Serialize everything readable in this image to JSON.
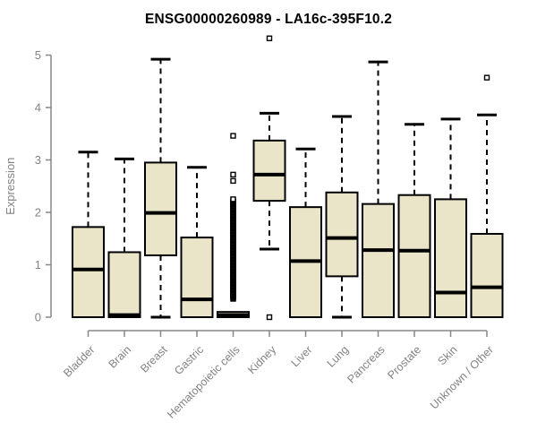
{
  "chart_data": {
    "type": "box",
    "title": "ENSG00000260989 - LA16c-395F10.2",
    "ylabel": "Expression",
    "xlabel": "",
    "ylim": [
      0,
      5
    ],
    "yticks": [
      0,
      1,
      2,
      3,
      4,
      5
    ],
    "grid": false,
    "legend": "none",
    "categories": [
      "Bladder",
      "Brain",
      "Breast",
      "Gastric",
      "Hematopoietic cells",
      "Kidney",
      "Liver",
      "Lung",
      "Pancreas",
      "Prostate",
      "Skin",
      "Unknown / Other"
    ],
    "series": [
      {
        "category": "Bladder",
        "whisker_low": 0,
        "q1": 0,
        "median": 0.91,
        "q3": 1.72,
        "whisker_high": 3.15,
        "outliers": []
      },
      {
        "category": "Brain",
        "whisker_low": 0,
        "q1": 0,
        "median": 0.04,
        "q3": 1.24,
        "whisker_high": 3.02,
        "outliers": []
      },
      {
        "category": "Breast",
        "whisker_low": 0,
        "q1": 1.18,
        "median": 1.99,
        "q3": 2.95,
        "whisker_high": 4.92,
        "outliers": []
      },
      {
        "category": "Gastric",
        "whisker_low": 0,
        "q1": 0,
        "median": 0.34,
        "q3": 1.52,
        "whisker_high": 2.86,
        "outliers": []
      },
      {
        "category": "Hematopoietic cells",
        "whisker_low": 0,
        "q1": 0,
        "median": 0.04,
        "q3": 0.1,
        "whisker_high": 0.1,
        "outliers": [
          2.6,
          2.72,
          3.46
        ],
        "outlier_band": [
          0.35,
          2.26
        ]
      },
      {
        "category": "Kidney",
        "whisker_low": 1.3,
        "q1": 2.22,
        "median": 2.72,
        "q3": 3.37,
        "whisker_high": 3.89,
        "outliers": [
          0,
          5.32
        ]
      },
      {
        "category": "Liver",
        "whisker_low": 0,
        "q1": 0,
        "median": 1.07,
        "q3": 2.1,
        "whisker_high": 3.21,
        "outliers": []
      },
      {
        "category": "Lung",
        "whisker_low": 0,
        "q1": 0.78,
        "median": 1.51,
        "q3": 2.38,
        "whisker_high": 3.83,
        "outliers": []
      },
      {
        "category": "Pancreas",
        "whisker_low": 0,
        "q1": 0,
        "median": 1.28,
        "q3": 2.16,
        "whisker_high": 4.87,
        "outliers": []
      },
      {
        "category": "Prostate",
        "whisker_low": 0,
        "q1": 0,
        "median": 1.27,
        "q3": 2.33,
        "whisker_high": 3.68,
        "outliers": []
      },
      {
        "category": "Skin",
        "whisker_low": 0,
        "q1": 0,
        "median": 0.47,
        "q3": 2.25,
        "whisker_high": 3.78,
        "outliers": []
      },
      {
        "category": "Unknown / Other",
        "whisker_low": 0,
        "q1": 0,
        "median": 0.57,
        "q3": 1.59,
        "whisker_high": 3.86,
        "outliers": [
          4.57
        ]
      }
    ],
    "colors": {
      "box_fill": "#EAE4C8",
      "box_stroke": "#000000",
      "median": "#000000",
      "axis": "#878787",
      "tick_text": "#828282",
      "title_text": "#000000",
      "outlier_stroke": "#000000",
      "outlier_fill": "#ffffff"
    }
  }
}
